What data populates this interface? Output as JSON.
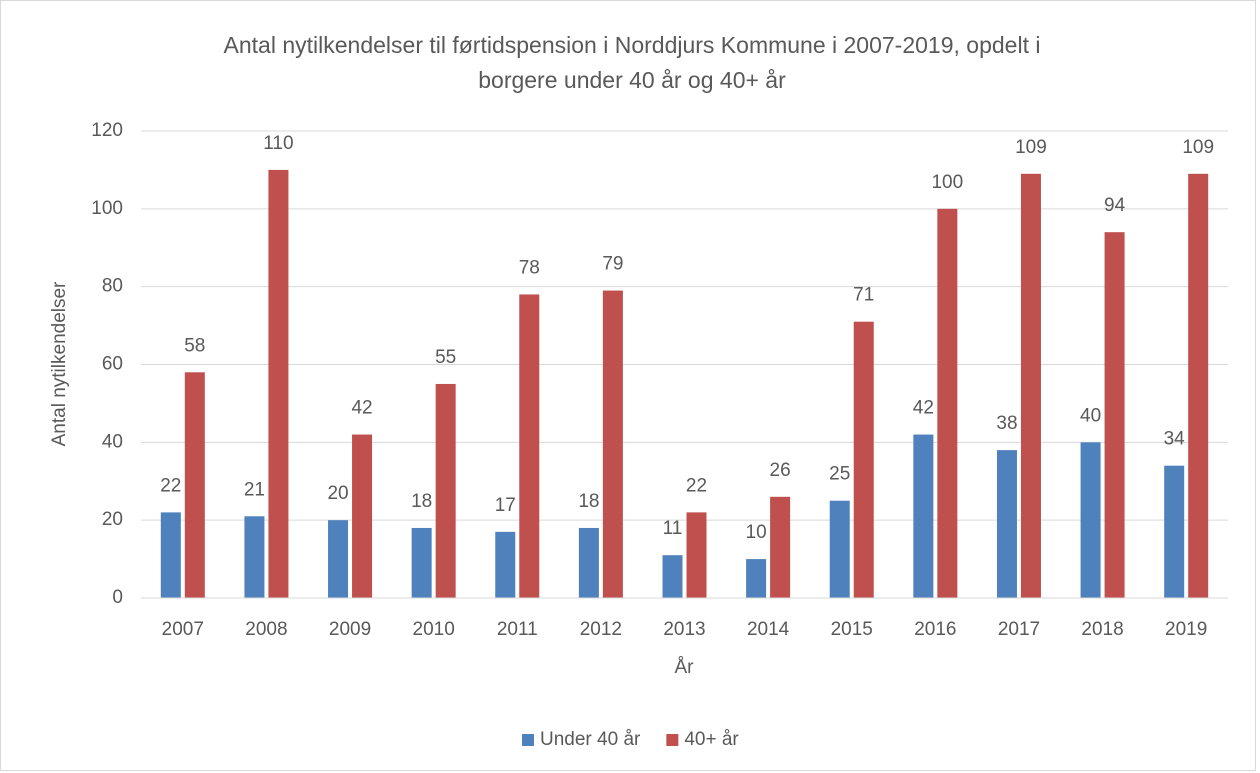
{
  "chart_data": {
    "type": "bar",
    "title": [
      "Antal nytilkendelser  til førtidspension  i Norddjurs Kommune i 2007-2019, opdelt i",
      "borgere under 40 år og 40+ år"
    ],
    "x_label": "År",
    "y_label": "Antal nytilkendelser",
    "categories": [
      "2007",
      "2008",
      "2009",
      "2010",
      "2011",
      "2012",
      "2013",
      "2014",
      "2015",
      "2016",
      "2017",
      "2018",
      "2019"
    ],
    "series": [
      {
        "name": "Under 40 år",
        "color": "#4f81bd",
        "values": [
          22,
          21,
          20,
          18,
          17,
          18,
          11,
          10,
          25,
          42,
          38,
          40,
          34
        ]
      },
      {
        "name": "40+ år",
        "color": "#c0504d",
        "values": [
          58,
          110,
          42,
          55,
          78,
          79,
          22,
          26,
          71,
          100,
          109,
          94,
          109
        ]
      }
    ],
    "ylim": [
      0,
      120
    ],
    "yticks": [
      0,
      20,
      40,
      60,
      80,
      100,
      120
    ],
    "grid": true,
    "legend": "bottom"
  }
}
